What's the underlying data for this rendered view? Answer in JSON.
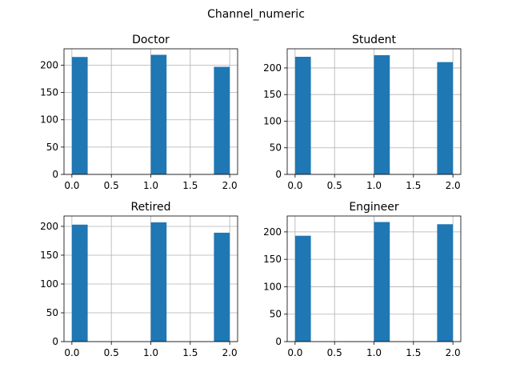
{
  "chart_data": {
    "type": "bar",
    "title": "Channel_numeric",
    "bar_color": "#1f77b4",
    "grid": true,
    "panels": [
      {
        "title": "Doctor",
        "bins": 10,
        "x": [
          0,
          1,
          2
        ],
        "values": [
          215,
          219,
          197
        ],
        "xlim": [
          -0.1,
          2.1
        ],
        "ylim": [
          0,
          230
        ],
        "xticks": [
          "0.0",
          "0.5",
          "1.0",
          "1.5",
          "2.0"
        ],
        "yticks": [
          "0",
          "50",
          "100",
          "150",
          "200"
        ]
      },
      {
        "title": "Student",
        "bins": 10,
        "x": [
          0,
          1,
          2
        ],
        "values": [
          221,
          224,
          211
        ],
        "xlim": [
          -0.1,
          2.1
        ],
        "ylim": [
          0,
          236
        ],
        "xticks": [
          "0.0",
          "0.5",
          "1.0",
          "1.5",
          "2.0"
        ],
        "yticks": [
          "0",
          "50",
          "100",
          "150",
          "200"
        ]
      },
      {
        "title": "Retired",
        "bins": 10,
        "x": [
          0,
          1,
          2
        ],
        "values": [
          203,
          207,
          189
        ],
        "xlim": [
          -0.1,
          2.1
        ],
        "ylim": [
          0,
          218
        ],
        "xticks": [
          "0.0",
          "0.5",
          "1.0",
          "1.5",
          "2.0"
        ],
        "yticks": [
          "0",
          "50",
          "100",
          "150",
          "200"
        ]
      },
      {
        "title": "Engineer",
        "bins": 10,
        "x": [
          0,
          1,
          2
        ],
        "values": [
          193,
          218,
          214
        ],
        "xlim": [
          -0.1,
          2.1
        ],
        "ylim": [
          0,
          229
        ],
        "xticks": [
          "0.0",
          "0.5",
          "1.0",
          "1.5",
          "2.0"
        ],
        "yticks": [
          "0",
          "50",
          "100",
          "150",
          "200"
        ]
      }
    ]
  }
}
